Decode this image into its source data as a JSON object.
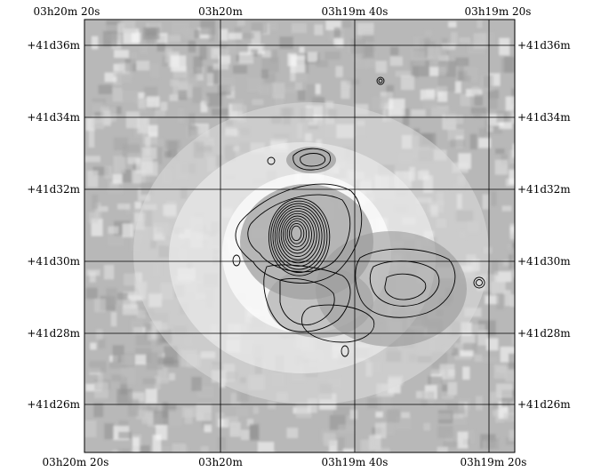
{
  "figure": {
    "ra_labels": [
      "03h20m 20s",
      "03h20m",
      "03h19m 40s",
      "03h19m 20s"
    ],
    "dec_labels": [
      "+41d36m",
      "+41d34m",
      "+41d32m",
      "+41d30m",
      "+41d28m",
      "+41d26m"
    ]
  },
  "colors": {
    "grid": "#000000",
    "contour": "#000000",
    "background": "#ffffff"
  }
}
